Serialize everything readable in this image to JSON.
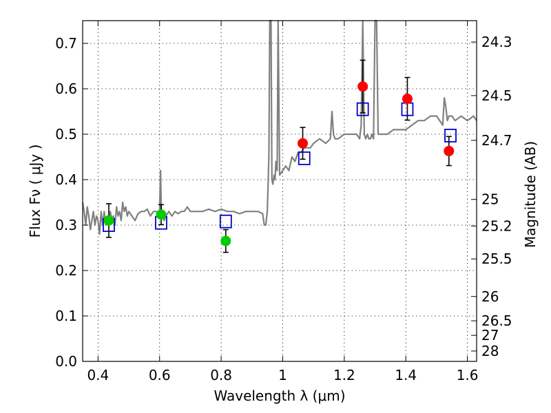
{
  "chart_data": {
    "type": "scatter",
    "xlabel": "Wavelength  λ (μm)",
    "ylabel": "Flux  Fν  ( μJy )",
    "ylabel_right": "Magnitude (AB)",
    "xlim": [
      0.35,
      1.63
    ],
    "ylim": [
      0.0,
      0.75
    ],
    "grid": true,
    "x_ticks": [
      0.4,
      0.6,
      0.8,
      1.0,
      1.2,
      1.4,
      1.6
    ],
    "x_tick_labels": [
      "0.4",
      "0.6",
      "0.8",
      "1",
      "1.2",
      "1.4",
      "1.6"
    ],
    "y_ticks": [
      0.0,
      0.1,
      0.2,
      0.3,
      0.4,
      0.5,
      0.6,
      0.7
    ],
    "y_tick_labels": [
      "0.0",
      "0.1",
      "0.2",
      "0.3",
      "0.4",
      "0.5",
      "0.6",
      "0.7"
    ],
    "right_ticks": [
      {
        "label": "24.3",
        "flux": 0.703
      },
      {
        "label": "24.5",
        "flux": 0.585
      },
      {
        "label": "24.7",
        "flux": 0.4865
      },
      {
        "label": "25",
        "flux": 0.3565
      },
      {
        "label": "25.2",
        "flux": 0.298
      },
      {
        "label": "25.5",
        "flux": 0.2255
      },
      {
        "label": "26",
        "flux": 0.1428
      },
      {
        "label": "26.5",
        "flux": 0.0893
      },
      {
        "label": "27",
        "flux": 0.0573
      },
      {
        "label": "28",
        "flux": 0.0228
      }
    ],
    "series": [
      {
        "kind": "spectrum",
        "color": "#808080",
        "x": [
          0.35,
          0.355,
          0.36,
          0.365,
          0.37,
          0.375,
          0.38,
          0.385,
          0.39,
          0.395,
          0.4,
          0.405,
          0.41,
          0.415,
          0.42,
          0.425,
          0.43,
          0.435,
          0.44,
          0.445,
          0.45,
          0.455,
          0.46,
          0.465,
          0.47,
          0.475,
          0.48,
          0.485,
          0.49,
          0.495,
          0.5,
          0.51,
          0.52,
          0.53,
          0.54,
          0.55,
          0.56,
          0.57,
          0.58,
          0.59,
          0.595,
          0.6,
          0.603,
          0.606,
          0.61,
          0.615,
          0.62,
          0.63,
          0.64,
          0.65,
          0.66,
          0.67,
          0.68,
          0.69,
          0.7,
          0.72,
          0.74,
          0.76,
          0.78,
          0.8,
          0.82,
          0.84,
          0.86,
          0.88,
          0.9,
          0.92,
          0.935,
          0.94,
          0.945,
          0.95,
          0.955,
          0.958,
          0.962,
          0.965,
          0.968,
          0.972,
          0.975,
          0.978,
          0.982,
          0.985,
          0.99,
          1.0,
          1.01,
          1.02,
          1.03,
          1.04,
          1.05,
          1.06,
          1.07,
          1.08,
          1.09,
          1.1,
          1.12,
          1.14,
          1.155,
          1.16,
          1.165,
          1.17,
          1.18,
          1.2,
          1.22,
          1.24,
          1.25,
          1.255,
          1.26,
          1.265,
          1.27,
          1.275,
          1.28,
          1.285,
          1.29,
          1.295,
          1.3,
          1.305,
          1.31,
          1.32,
          1.34,
          1.36,
          1.38,
          1.4,
          1.42,
          1.44,
          1.46,
          1.48,
          1.5,
          1.51,
          1.52,
          1.525,
          1.53,
          1.535,
          1.54,
          1.55,
          1.56,
          1.58,
          1.6,
          1.62,
          1.63
        ],
        "y": [
          0.35,
          0.33,
          0.3,
          0.34,
          0.32,
          0.29,
          0.31,
          0.33,
          0.3,
          0.32,
          0.31,
          0.28,
          0.33,
          0.3,
          0.33,
          0.3,
          0.32,
          0.31,
          0.33,
          0.31,
          0.32,
          0.3,
          0.34,
          0.32,
          0.33,
          0.31,
          0.35,
          0.33,
          0.34,
          0.32,
          0.33,
          0.32,
          0.31,
          0.325,
          0.33,
          0.33,
          0.335,
          0.32,
          0.33,
          0.33,
          0.32,
          0.33,
          0.42,
          0.32,
          0.325,
          0.31,
          0.32,
          0.33,
          0.32,
          0.33,
          0.325,
          0.33,
          0.33,
          0.34,
          0.33,
          0.33,
          0.33,
          0.335,
          0.33,
          0.335,
          0.33,
          0.33,
          0.325,
          0.33,
          0.33,
          0.33,
          0.325,
          0.3,
          0.3,
          0.33,
          0.45,
          0.75,
          0.75,
          0.4,
          0.39,
          0.41,
          0.4,
          0.44,
          0.42,
          0.75,
          0.41,
          0.42,
          0.43,
          0.42,
          0.45,
          0.44,
          0.46,
          0.46,
          0.47,
          0.47,
          0.47,
          0.48,
          0.49,
          0.48,
          0.49,
          0.55,
          0.5,
          0.49,
          0.49,
          0.5,
          0.5,
          0.5,
          0.49,
          0.52,
          0.75,
          0.5,
          0.49,
          0.5,
          0.49,
          0.49,
          0.5,
          0.49,
          0.75,
          0.75,
          0.5,
          0.5,
          0.5,
          0.51,
          0.51,
          0.51,
          0.52,
          0.53,
          0.53,
          0.54,
          0.54,
          0.53,
          0.52,
          0.58,
          0.56,
          0.53,
          0.54,
          0.54,
          0.53,
          0.54,
          0.53,
          0.54,
          0.53
        ]
      },
      {
        "kind": "observed",
        "color": "#00cc00",
        "x": [
          0.435,
          0.605,
          0.815
        ],
        "y": [
          0.31,
          0.323,
          0.265
        ],
        "err": [
          0.037,
          0.022,
          0.025
        ]
      },
      {
        "kind": "observed",
        "color": "#ff0000",
        "x": [
          1.065,
          1.26,
          1.405,
          1.54
        ],
        "y": [
          0.48,
          0.605,
          0.578,
          0.463
        ],
        "err": [
          0.035,
          0.058,
          0.047,
          0.032
        ]
      },
      {
        "kind": "model",
        "color": "#0000cc",
        "x": [
          0.435,
          0.605,
          0.815,
          1.07,
          1.26,
          1.405,
          1.545
        ],
        "y": [
          0.3,
          0.305,
          0.308,
          0.447,
          0.555,
          0.555,
          0.497
        ]
      }
    ]
  }
}
